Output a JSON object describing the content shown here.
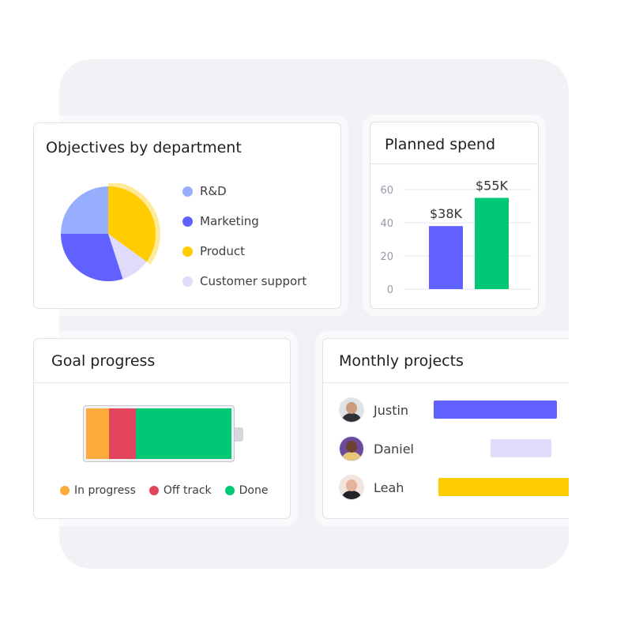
{
  "colors": {
    "backdrop": "#f1f2f5",
    "rnd": "#97aeff",
    "marketing": "#6161ff",
    "product": "#ffcc00",
    "customer_support": "#e1dbfb",
    "in_progress": "#fdab3d",
    "off_track": "#e2445c",
    "done": "#00c875"
  },
  "objectives": {
    "title": "Objectives by department",
    "legend": [
      {
        "label": "R&D",
        "color": "#97aeff"
      },
      {
        "label": "Marketing",
        "color": "#6161ff"
      },
      {
        "label": "Product",
        "color": "#ffcc00"
      },
      {
        "label": "Customer support",
        "color": "#e1dbfb"
      }
    ]
  },
  "spend": {
    "title": "Planned spend"
  },
  "goal": {
    "title": "Goal progress",
    "legend": [
      {
        "label": "In progress",
        "color": "#fdab3d"
      },
      {
        "label": "Off track",
        "color": "#e2445c"
      },
      {
        "label": "Done",
        "color": "#00c875"
      }
    ]
  },
  "monthly": {
    "title": "Monthly projects",
    "people": [
      {
        "name": "Justin",
        "avatar_icon": "person-avatar-icon",
        "bar_color": "#6161ff"
      },
      {
        "name": "Daniel",
        "avatar_icon": "person-avatar-icon",
        "bar_color": "#e1dbfb"
      },
      {
        "name": "Leah",
        "avatar_icon": "person-avatar-icon",
        "bar_color": "#ffcc00"
      }
    ]
  },
  "chart_data": [
    {
      "type": "pie",
      "title": "Objectives by department",
      "categories": [
        "R&D",
        "Marketing",
        "Product",
        "Customer support"
      ],
      "values": [
        25,
        30,
        35,
        10
      ],
      "highlighted": "Product",
      "legend_position": "right"
    },
    {
      "type": "bar",
      "title": "Planned spend",
      "categories": [
        "",
        ""
      ],
      "values": [
        38,
        55
      ],
      "data_labels": [
        "$38K",
        "$55K"
      ],
      "colors": [
        "#6161ff",
        "#00c875"
      ],
      "yticks": [
        "0",
        "20",
        "40",
        "60"
      ],
      "ylim": [
        0,
        60
      ],
      "grid": true
    },
    {
      "type": "bar",
      "title": "Goal progress",
      "orientation": "horizontal-stacked",
      "categories": [
        "In progress",
        "Off track",
        "Done"
      ],
      "values": [
        16,
        18,
        66
      ],
      "unit": "percent"
    }
  ]
}
